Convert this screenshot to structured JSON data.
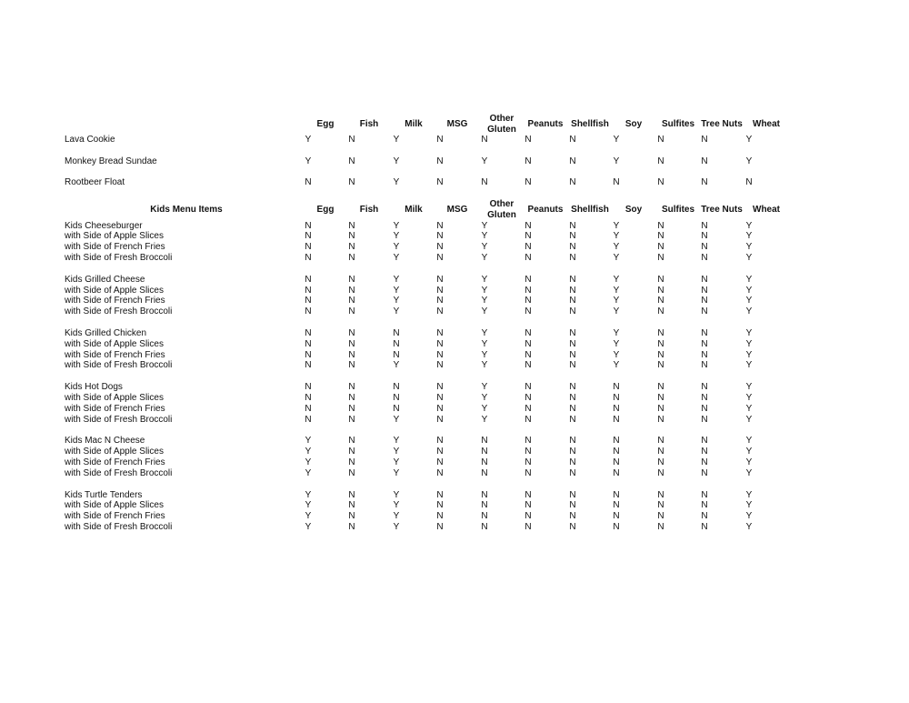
{
  "allergens": [
    "Egg",
    "Fish",
    "Milk",
    "MSG",
    "Other Gluten",
    "Peanuts",
    "Shellfish",
    "Soy",
    "Sulfites",
    "Tree Nuts",
    "Wheat"
  ],
  "dessert_section": {
    "title": "",
    "rows": [
      {
        "name": "Lava Cookie",
        "values": [
          "Y",
          "N",
          "Y",
          "N",
          "N",
          "N",
          "N",
          "Y",
          "N",
          "N",
          "Y"
        ]
      },
      {
        "name": "Monkey Bread Sundae",
        "values": [
          "Y",
          "N",
          "Y",
          "N",
          "Y",
          "N",
          "N",
          "Y",
          "N",
          "N",
          "Y"
        ]
      },
      {
        "name": "Rootbeer Float",
        "values": [
          "N",
          "N",
          "Y",
          "N",
          "N",
          "N",
          "N",
          "N",
          "N",
          "N",
          "N"
        ]
      }
    ]
  },
  "kids_section": {
    "title": "Kids Menu Items",
    "groups": [
      {
        "rows": [
          {
            "name": "Kids Cheeseburger",
            "values": [
              "N",
              "N",
              "Y",
              "N",
              "Y",
              "N",
              "N",
              "Y",
              "N",
              "N",
              "Y"
            ]
          },
          {
            "name": "with Side of Apple Slices",
            "values": [
              "N",
              "N",
              "Y",
              "N",
              "Y",
              "N",
              "N",
              "Y",
              "N",
              "N",
              "Y"
            ]
          },
          {
            "name": "with Side of French Fries",
            "values": [
              "N",
              "N",
              "Y",
              "N",
              "Y",
              "N",
              "N",
              "Y",
              "N",
              "N",
              "Y"
            ]
          },
          {
            "name": "with Side of Fresh Broccoli",
            "values": [
              "N",
              "N",
              "Y",
              "N",
              "Y",
              "N",
              "N",
              "Y",
              "N",
              "N",
              "Y"
            ]
          }
        ]
      },
      {
        "rows": [
          {
            "name": "Kids Grilled Cheese",
            "values": [
              "N",
              "N",
              "Y",
              "N",
              "Y",
              "N",
              "N",
              "Y",
              "N",
              "N",
              "Y"
            ]
          },
          {
            "name": "with Side of Apple Slices",
            "values": [
              "N",
              "N",
              "Y",
              "N",
              "Y",
              "N",
              "N",
              "Y",
              "N",
              "N",
              "Y"
            ]
          },
          {
            "name": "with Side of French Fries",
            "values": [
              "N",
              "N",
              "Y",
              "N",
              "Y",
              "N",
              "N",
              "Y",
              "N",
              "N",
              "Y"
            ]
          },
          {
            "name": "with Side of Fresh Broccoli",
            "values": [
              "N",
              "N",
              "Y",
              "N",
              "Y",
              "N",
              "N",
              "Y",
              "N",
              "N",
              "Y"
            ]
          }
        ]
      },
      {
        "rows": [
          {
            "name": "Kids Grilled Chicken",
            "values": [
              "N",
              "N",
              "N",
              "N",
              "Y",
              "N",
              "N",
              "Y",
              "N",
              "N",
              "Y"
            ]
          },
          {
            "name": "with Side of Apple Slices",
            "values": [
              "N",
              "N",
              "N",
              "N",
              "Y",
              "N",
              "N",
              "Y",
              "N",
              "N",
              "Y"
            ]
          },
          {
            "name": "with Side of French Fries",
            "values": [
              "N",
              "N",
              "N",
              "N",
              "Y",
              "N",
              "N",
              "Y",
              "N",
              "N",
              "Y"
            ]
          },
          {
            "name": "with Side of Fresh Broccoli",
            "values": [
              "N",
              "N",
              "Y",
              "N",
              "Y",
              "N",
              "N",
              "Y",
              "N",
              "N",
              "Y"
            ]
          }
        ]
      },
      {
        "rows": [
          {
            "name": "Kids Hot Dogs",
            "values": [
              "N",
              "N",
              "N",
              "N",
              "Y",
              "N",
              "N",
              "N",
              "N",
              "N",
              "Y"
            ]
          },
          {
            "name": "with Side of Apple Slices",
            "values": [
              "N",
              "N",
              "N",
              "N",
              "Y",
              "N",
              "N",
              "N",
              "N",
              "N",
              "Y"
            ]
          },
          {
            "name": "with Side of French Fries",
            "values": [
              "N",
              "N",
              "N",
              "N",
              "Y",
              "N",
              "N",
              "N",
              "N",
              "N",
              "Y"
            ]
          },
          {
            "name": "with Side of Fresh Broccoli",
            "values": [
              "N",
              "N",
              "Y",
              "N",
              "Y",
              "N",
              "N",
              "N",
              "N",
              "N",
              "Y"
            ]
          }
        ]
      },
      {
        "rows": [
          {
            "name": "Kids Mac N Cheese",
            "values": [
              "Y",
              "N",
              "Y",
              "N",
              "N",
              "N",
              "N",
              "N",
              "N",
              "N",
              "Y"
            ]
          },
          {
            "name": "with Side of Apple Slices",
            "values": [
              "Y",
              "N",
              "Y",
              "N",
              "N",
              "N",
              "N",
              "N",
              "N",
              "N",
              "Y"
            ]
          },
          {
            "name": "with Side of French Fries",
            "values": [
              "Y",
              "N",
              "Y",
              "N",
              "N",
              "N",
              "N",
              "N",
              "N",
              "N",
              "Y"
            ]
          },
          {
            "name": "with Side of Fresh Broccoli",
            "values": [
              "Y",
              "N",
              "Y",
              "N",
              "N",
              "N",
              "N",
              "N",
              "N",
              "N",
              "Y"
            ]
          }
        ]
      },
      {
        "rows": [
          {
            "name": "Kids Turtle Tenders",
            "values": [
              "Y",
              "N",
              "Y",
              "N",
              "N",
              "N",
              "N",
              "N",
              "N",
              "N",
              "Y"
            ]
          },
          {
            "name": "with Side of Apple Slices",
            "values": [
              "Y",
              "N",
              "Y",
              "N",
              "N",
              "N",
              "N",
              "N",
              "N",
              "N",
              "Y"
            ]
          },
          {
            "name": "with Side of French Fries",
            "values": [
              "Y",
              "N",
              "Y",
              "N",
              "N",
              "N",
              "N",
              "N",
              "N",
              "N",
              "Y"
            ]
          },
          {
            "name": "with Side of Fresh Broccoli",
            "values": [
              "Y",
              "N",
              "Y",
              "N",
              "N",
              "N",
              "N",
              "N",
              "N",
              "N",
              "Y"
            ]
          }
        ]
      }
    ]
  }
}
